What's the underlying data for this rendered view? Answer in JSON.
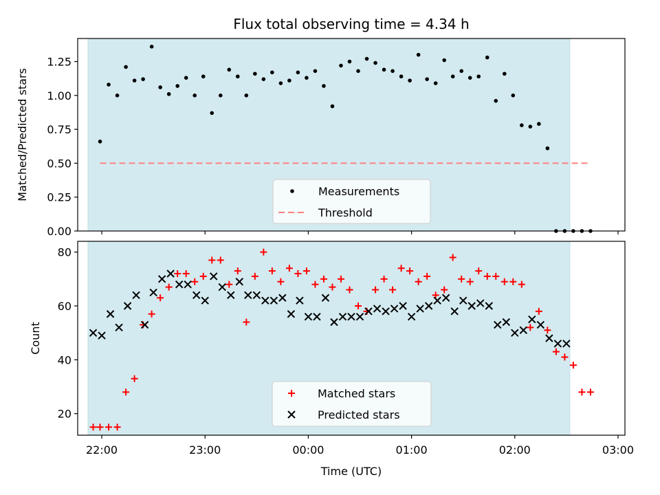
{
  "chart_data": [
    {
      "type": "scatter",
      "title": "Flux total observing time = 4.34 h",
      "xlabel": "",
      "ylabel": "Matched/Predicted stars",
      "ylim": [
        0,
        1.42
      ],
      "yticks": [
        "0.00",
        "0.25",
        "0.50",
        "0.75",
        "1.00",
        "1.25"
      ],
      "legend_position": "lower-center",
      "observing_window": [
        "21:52",
        "02:32"
      ],
      "series": [
        {
          "name": "Measurements",
          "marker": "dot",
          "color": "#000000",
          "x": [
            "21:59",
            "22:04",
            "22:09",
            "22:14",
            "22:19",
            "22:24",
            "22:29",
            "22:34",
            "22:39",
            "22:44",
            "22:49",
            "22:54",
            "22:59",
            "23:04",
            "23:09",
            "23:14",
            "23:19",
            "23:24",
            "23:29",
            "23:34",
            "23:39",
            "23:44",
            "23:49",
            "23:54",
            "23:59",
            "00:04",
            "00:09",
            "00:14",
            "00:19",
            "00:24",
            "00:29",
            "00:34",
            "00:39",
            "00:44",
            "00:49",
            "00:54",
            "00:59",
            "01:04",
            "01:09",
            "01:14",
            "01:19",
            "01:24",
            "01:29",
            "01:34",
            "01:39",
            "01:44",
            "01:49",
            "01:54",
            "01:59",
            "02:04",
            "02:09",
            "02:14",
            "02:19",
            "02:24",
            "02:29",
            "02:34",
            "02:39",
            "02:44"
          ],
          "y": [
            0.66,
            1.08,
            1.0,
            1.21,
            1.11,
            1.12,
            1.36,
            1.06,
            1.01,
            1.07,
            1.13,
            1.0,
            1.14,
            0.87,
            1.0,
            1.19,
            1.14,
            1.0,
            1.16,
            1.12,
            1.17,
            1.09,
            1.11,
            1.17,
            1.13,
            1.18,
            1.07,
            0.92,
            1.22,
            1.25,
            1.18,
            1.27,
            1.24,
            1.19,
            1.18,
            1.14,
            1.11,
            1.3,
            1.12,
            1.09,
            1.26,
            1.14,
            1.18,
            1.13,
            1.14,
            1.28,
            0.96,
            1.16,
            1.0,
            0.78,
            0.77,
            0.79,
            0.61,
            0.0,
            0.0,
            0.0,
            0.0,
            0.0
          ]
        },
        {
          "name": "Threshold",
          "style": "dashed",
          "color": "#ff7f7f",
          "x": [
            "21:59",
            "02:44"
          ],
          "y": [
            0.5,
            0.5
          ]
        }
      ]
    },
    {
      "type": "scatter",
      "title": "",
      "xlabel": "Time (UTC)",
      "ylabel": "Count",
      "ylim": [
        12,
        84
      ],
      "yticks": [
        "20",
        "40",
        "60",
        "80"
      ],
      "xticks": [
        "22:00",
        "23:00",
        "00:00",
        "01:00",
        "02:00",
        "03:00"
      ],
      "legend_position": "lower-center",
      "observing_window": [
        "21:52",
        "02:32"
      ],
      "series": [
        {
          "name": "Matched stars",
          "marker": "plus",
          "color": "#ff0000",
          "x": [
            "21:59",
            "22:04",
            "22:09",
            "21:55",
            "22:19",
            "22:24",
            "22:29",
            "22:34",
            "22:39",
            "22:44",
            "22:49",
            "22:54",
            "22:59",
            "23:04",
            "23:09",
            "23:14",
            "23:19",
            "23:24",
            "23:29",
            "23:34",
            "23:39",
            "23:44",
            "23:49",
            "23:54",
            "23:59",
            "00:04",
            "00:09",
            "00:14",
            "00:19",
            "00:24",
            "00:29",
            "00:34",
            "00:39",
            "00:44",
            "00:49",
            "00:54",
            "00:59",
            "01:04",
            "01:09",
            "01:14",
            "01:19",
            "01:24",
            "01:29",
            "01:34",
            "01:39",
            "01:44",
            "01:49",
            "01:54",
            "01:59",
            "02:04",
            "02:09",
            "02:14",
            "02:19",
            "02:24",
            "02:29",
            "02:34",
            "02:39",
            "02:44",
            "22:14"
          ],
          "y": [
            15,
            15,
            15,
            15,
            33,
            53,
            57,
            63,
            67,
            72,
            72,
            69,
            71,
            77,
            77,
            68,
            73,
            54,
            71,
            80,
            73,
            69,
            74,
            72,
            73,
            68,
            70,
            67,
            70,
            66,
            60,
            58,
            66,
            70,
            66,
            74,
            73,
            69,
            71,
            64,
            66,
            78,
            70,
            69,
            73,
            71,
            71,
            69,
            69,
            68,
            52,
            58,
            51,
            43,
            41,
            38,
            28,
            28,
            28
          ]
        },
        {
          "name": "Predicted stars",
          "marker": "x",
          "color": "#000000",
          "x": [
            "21:55",
            "22:00",
            "22:05",
            "22:10",
            "22:15",
            "22:20",
            "22:25",
            "22:30",
            "22:35",
            "22:40",
            "22:45",
            "22:50",
            "22:55",
            "23:00",
            "23:05",
            "23:10",
            "23:15",
            "23:20",
            "23:25",
            "23:30",
            "23:35",
            "23:40",
            "23:45",
            "23:50",
            "23:55",
            "00:00",
            "00:05",
            "00:10",
            "00:15",
            "00:20",
            "00:25",
            "00:30",
            "00:35",
            "00:40",
            "00:45",
            "00:50",
            "00:55",
            "01:00",
            "01:05",
            "01:10",
            "01:15",
            "01:20",
            "01:25",
            "01:30",
            "01:35",
            "01:40",
            "01:45",
            "01:50",
            "01:55",
            "02:00",
            "02:05",
            "02:10",
            "02:15",
            "02:20",
            "02:25",
            "02:30"
          ],
          "y": [
            50,
            49,
            57,
            52,
            60,
            64,
            53,
            65,
            70,
            72,
            68,
            68,
            64,
            62,
            71,
            67,
            64,
            69,
            64,
            64,
            62,
            62,
            63,
            57,
            62,
            56,
            56,
            63,
            54,
            56,
            56,
            56,
            58,
            59,
            58,
            59,
            60,
            56,
            59,
            60,
            62,
            63,
            58,
            62,
            60,
            61,
            60,
            53,
            54,
            50,
            51,
            55,
            53,
            48,
            46,
            46
          ]
        }
      ]
    }
  ]
}
